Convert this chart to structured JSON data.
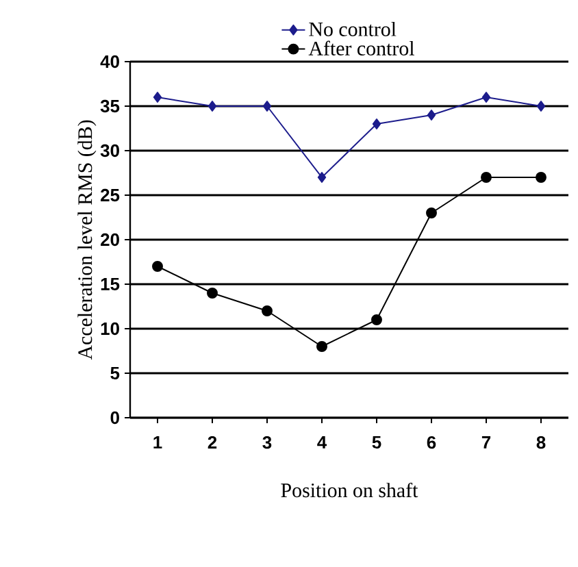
{
  "chart_data": {
    "type": "line",
    "xlabel": "Position on shaft",
    "ylabel": "Acceleration level RMS (dB)",
    "categories": [
      "1",
      "2",
      "3",
      "4",
      "5",
      "6",
      "7",
      "8"
    ],
    "series": [
      {
        "name": "No control",
        "color": "#1c1c8c",
        "marker": "diamond",
        "values": [
          36,
          35,
          35,
          27,
          33,
          34,
          36,
          35
        ]
      },
      {
        "name": "After control",
        "color": "#000000",
        "marker": "circle",
        "values": [
          17,
          14,
          12,
          8,
          11,
          23,
          27,
          27
        ]
      }
    ],
    "ylim": [
      0,
      40
    ],
    "yticks": [
      0,
      5,
      10,
      15,
      20,
      25,
      30,
      35,
      40
    ],
    "grid": "y",
    "legend": "top",
    "line_style": "solid"
  }
}
